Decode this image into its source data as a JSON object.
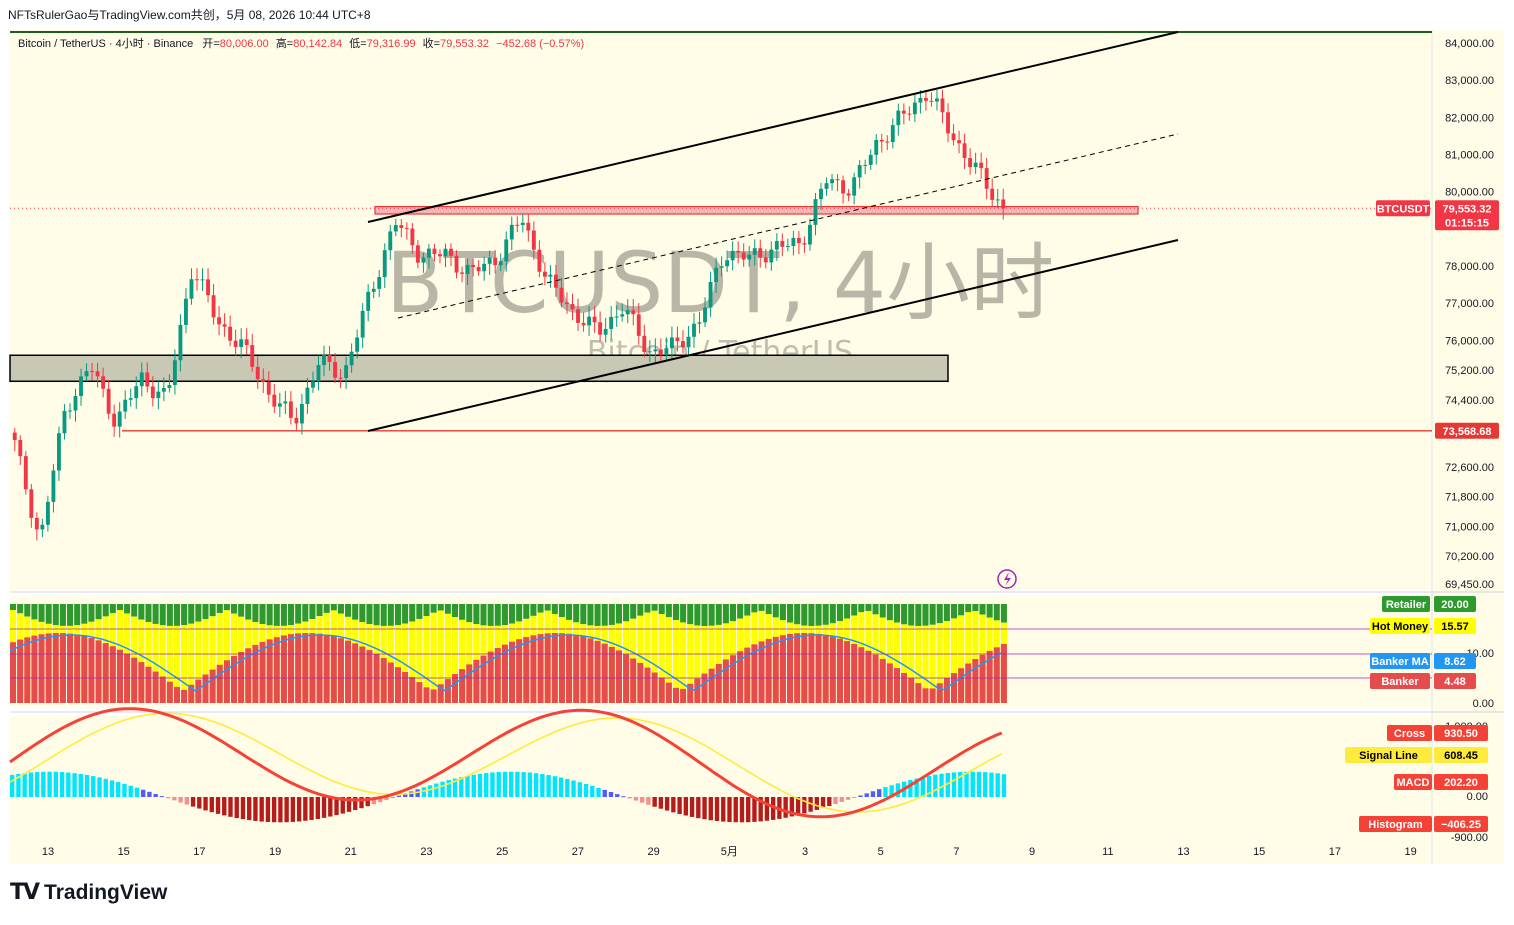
{
  "header": {
    "topline": "NFTsRulerGao与TradingView.com共创，5月 08, 2026 10:44 UTC+8",
    "symbol_desc": "Bitcoin / TetherUS · 4小时 · Binance",
    "open_label": "开=",
    "open_value": "80,006.00",
    "high_label": "高=",
    "high_value": "80,142.84",
    "low_label": "低=",
    "low_value": "79,316.99",
    "close_label": "收=",
    "close_value": "79,553.32",
    "change": "−452.68 (−0.57%)"
  },
  "watermark": {
    "title": "BTCUSDT, 4小时",
    "subtitle": "Bitcoin / TetherUS"
  },
  "footer": {
    "brand": "TradingView",
    "logo": "TV"
  },
  "colors": {
    "bg": "#fffde8",
    "up": "#089981",
    "down": "#f23645",
    "yellow": "#ffff00",
    "green_bar": "#2e9a2e",
    "red_bar": "#e74c4c",
    "banker_ma": "#2196f3",
    "hline": "#e53935",
    "signal": "#ffeb3b",
    "macd_up": "#4cff4c",
    "macd_dn": "#f44336"
  },
  "chart_data": [
    {
      "type": "candlestick",
      "symbol": "BTCUSDT",
      "timeframe": "4小时",
      "y_ticks": [
        "84,000.00",
        "83,000.00",
        "82,000.00",
        "81,000.00",
        "80,000.00",
        "78,000.00",
        "77,000.00",
        "76,000.00",
        "75,200.00",
        "74,400.00",
        "72,600.00",
        "71,800.00",
        "71,000.00",
        "70,200.00",
        "69,450.00"
      ],
      "x_ticks": [
        "13",
        "15",
        "17",
        "19",
        "21",
        "23",
        "25",
        "27",
        "29",
        "5月",
        "3",
        "5",
        "7",
        "9",
        "11",
        "13",
        "15",
        "17",
        "19"
      ],
      "anchors": [
        {
          "label": "13",
          "price": 73200
        },
        {
          "label": "13.5",
          "price": 70600
        },
        {
          "label": "14.5",
          "price": 74200
        },
        {
          "label": "15",
          "price": 75300
        },
        {
          "label": "15.5",
          "price": 73800
        },
        {
          "label": "16.5",
          "price": 75000
        },
        {
          "label": "17.5",
          "price": 74400
        },
        {
          "label": "18",
          "price": 78000
        },
        {
          "label": "18.5",
          "price": 76500
        },
        {
          "label": "19.5",
          "price": 75800
        },
        {
          "label": "20",
          "price": 74600
        },
        {
          "label": "20.5",
          "price": 73800
        },
        {
          "label": "21",
          "price": 75400
        },
        {
          "label": "22",
          "price": 75100
        },
        {
          "label": "22.3",
          "price": 77200
        },
        {
          "label": "23",
          "price": 79200
        },
        {
          "label": "23.5",
          "price": 78300
        },
        {
          "label": "24.5",
          "price": 78300
        },
        {
          "label": "25.5",
          "price": 77800
        },
        {
          "label": "26.5",
          "price": 78200
        },
        {
          "label": "27.3",
          "price": 79300
        },
        {
          "label": "27.6",
          "price": 77600
        },
        {
          "label": "28.5",
          "price": 76800
        },
        {
          "label": "29",
          "price": 76200
        },
        {
          "label": "29.5",
          "price": 76900
        },
        {
          "label": "30",
          "price": 75700
        },
        {
          "label": "30.5",
          "price": 75800
        },
        {
          "label": "5月",
          "price": 76500
        },
        {
          "label": "1.5",
          "price": 78400
        },
        {
          "label": "2.5",
          "price": 78200
        },
        {
          "label": "3.5",
          "price": 78500
        },
        {
          "label": "4.3",
          "price": 78600
        },
        {
          "label": "4.5",
          "price": 80300
        },
        {
          "label": "5",
          "price": 80100
        },
        {
          "label": "5.5",
          "price": 81300
        },
        {
          "label": "6.5",
          "price": 82000
        },
        {
          "label": "6.8",
          "price": 82700
        },
        {
          "label": "7.2",
          "price": 81500
        },
        {
          "label": "7.6",
          "price": 80500
        },
        {
          "label": "8.0",
          "price": 79553.32
        }
      ],
      "last_price": "79,553.32",
      "last_label": "BTCUSDT",
      "countdown": "01:15:15",
      "support_line": "73,568.68",
      "resistance_zone": [
        79400,
        79600
      ],
      "support_zone": [
        74900,
        75600
      ]
    },
    {
      "type": "bar",
      "indicator": "Banker / Hot Money / Retailer",
      "y_ticks": [
        "10.00",
        "0.00"
      ],
      "legend": [
        {
          "name": "Retailer",
          "value": "20.00",
          "color": "#2e9a2e"
        },
        {
          "name": "Hot Money",
          "value": "15.57",
          "color": "#ffff00"
        },
        {
          "name": "Banker MA",
          "value": "8.62",
          "color": "#2196f3"
        },
        {
          "name": "Banker",
          "value": "4.48",
          "color": "#e74c4c"
        }
      ]
    },
    {
      "type": "line",
      "indicator": "MACD",
      "y_ticks": [
        "1,000.00",
        "0.00",
        "-900.00"
      ],
      "legend": [
        {
          "name": "Cross",
          "value": "930.50",
          "color": "#f44336"
        },
        {
          "name": "Signal Line",
          "value": "608.45",
          "color": "#ffeb3b"
        },
        {
          "name": "MACD",
          "value": "202.20",
          "color": "#f44336"
        },
        {
          "name": "Histogram",
          "value": "−406.25",
          "color": "#f44336"
        }
      ]
    }
  ]
}
